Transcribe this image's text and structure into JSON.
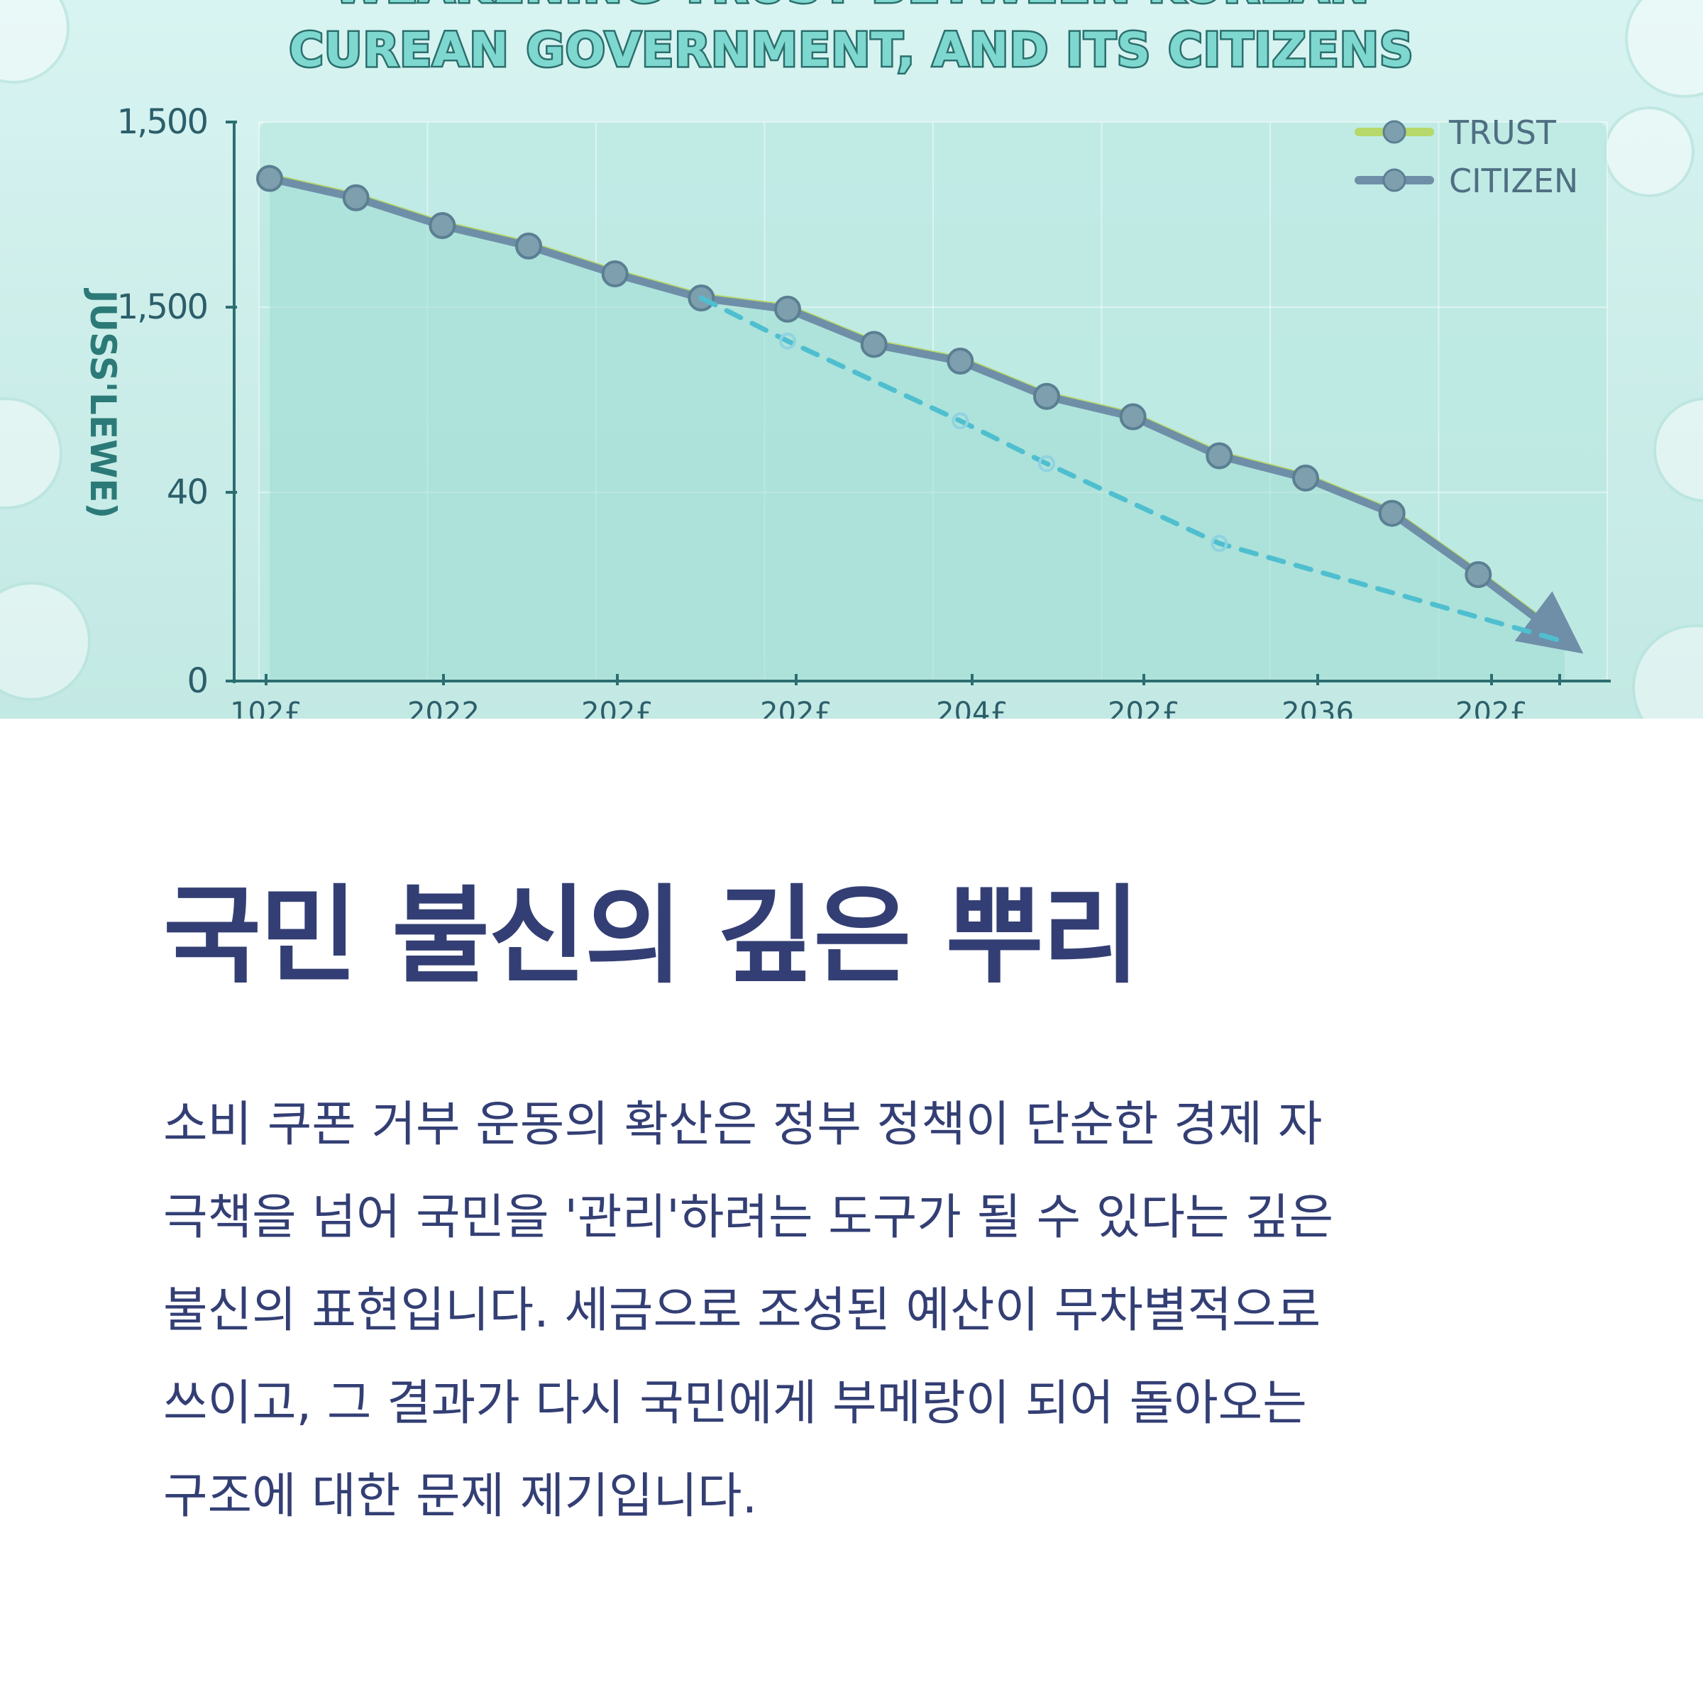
{
  "hero": {
    "title_line1": "WEAKENING TRUST BETWEEN KOREAN",
    "title_line2": "CUREAN GOVERNMENT, AND ITS CITIZENS"
  },
  "chart_data": {
    "type": "line",
    "ylabel": "JUSS'LEWE)",
    "y_ticks": [
      "1,500",
      "1,500",
      "40",
      "0"
    ],
    "x_ticks": [
      "102£",
      "2022",
      "202£",
      "202£",
      "204£",
      "202£",
      "2036",
      "202£"
    ],
    "legend_position": "top-right",
    "grid": true,
    "series": [
      {
        "name": "TRUST",
        "color": "#b7d86a",
        "values": [
          1342,
          1290,
          1215,
          1160,
          1085,
          1020,
          990,
          895,
          850,
          755,
          700,
          595,
          535,
          440,
          275,
          100
        ]
      },
      {
        "name": "CITIZEN",
        "color": "#6f8fa8",
        "values": [
          1348,
          1296,
          1221,
          1166,
          1091,
          1026,
          996,
          901,
          856,
          761,
          706,
          601,
          541,
          446,
          281,
          106
        ]
      },
      {
        "name": "",
        "color": "#4fbfd0",
        "style": "dashed",
        "values": [
          null,
          null,
          null,
          null,
          null,
          1026,
          910,
          null,
          695,
          580,
          null,
          365,
          null,
          null,
          null,
          100
        ]
      }
    ],
    "ylim": [
      0,
      1500
    ]
  },
  "article": {
    "heading": "국민 불신의 깊은 뿌리",
    "lines": [
      "소비 쿠폰 거부 운동의 확산은 정부 정책이 단순한 경제 자",
      "극책을 넘어 국민을 '관리'하려는 도구가 될 수 있다는 깊은",
      "불신의 표현입니다. 세금으로 조성된 예산이 무차별적으로",
      "쓰이고, 그 결과가 다시 국민에게 부메랑이 되어 돌아오는",
      "구조에 대한 문제 제기입니다."
    ]
  }
}
